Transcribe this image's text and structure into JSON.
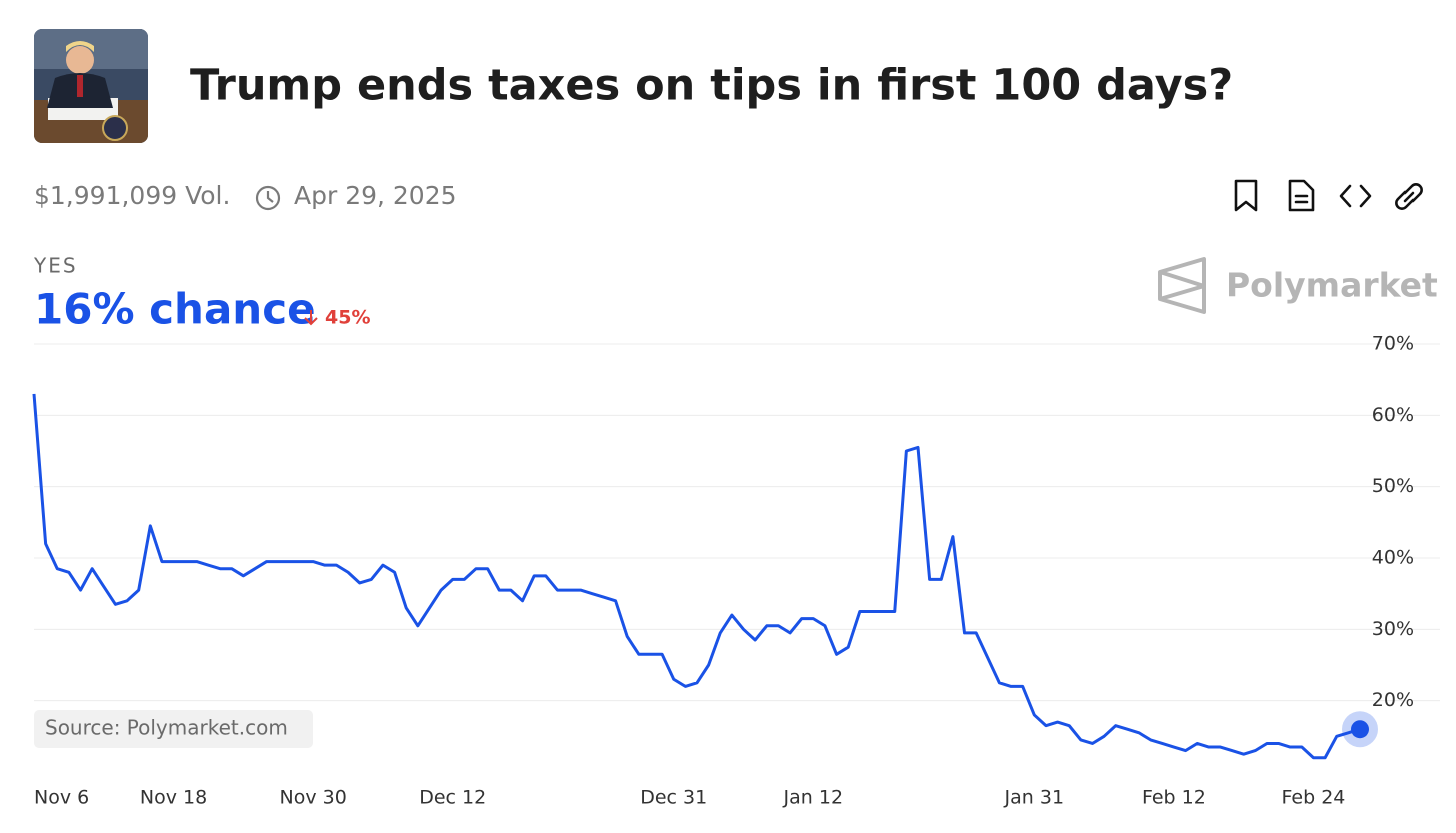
{
  "header": {
    "title": "Trump ends taxes on tips in first 100 days?",
    "volume": "$1,991,099 Vol.",
    "end_date": "Apr 29, 2025"
  },
  "outcome": "YES",
  "chance": "16% chance",
  "change": "45%",
  "watermark": "Polymarket",
  "source": "Source: Polymarket.com",
  "chart_data": {
    "type": "line",
    "x": [
      "Nov 6",
      "Nov 7",
      "Nov 8",
      "Nov 9",
      "Nov 10",
      "Nov 11",
      "Nov 12",
      "Nov 13",
      "Nov 14",
      "Nov 15",
      "Nov 16",
      "Nov 17",
      "Nov 18",
      "Nov 19",
      "Nov 20",
      "Nov 21",
      "Nov 22",
      "Nov 23",
      "Nov 24",
      "Nov 25",
      "Nov 26",
      "Nov 27",
      "Nov 28",
      "Nov 29",
      "Nov 30",
      "Dec 1",
      "Dec 2",
      "Dec 3",
      "Dec 4",
      "Dec 5",
      "Dec 6",
      "Dec 7",
      "Dec 8",
      "Dec 9",
      "Dec 10",
      "Dec 11",
      "Dec 12",
      "Dec 13",
      "Dec 14",
      "Dec 15",
      "Dec 16",
      "Dec 17",
      "Dec 18",
      "Dec 19",
      "Dec 20",
      "Dec 21",
      "Dec 22",
      "Dec 23",
      "Dec 24",
      "Dec 25",
      "Dec 26",
      "Dec 27",
      "Dec 28",
      "Dec 29",
      "Dec 30",
      "Dec 31",
      "Jan 1",
      "Jan 2",
      "Jan 3",
      "Jan 4",
      "Jan 5",
      "Jan 6",
      "Jan 7",
      "Jan 8",
      "Jan 9",
      "Jan 10",
      "Jan 11",
      "Jan 12",
      "Jan 13",
      "Jan 14",
      "Jan 15",
      "Jan 16",
      "Jan 17",
      "Jan 18",
      "Jan 19",
      "Jan 20",
      "Jan 21",
      "Jan 22",
      "Jan 23",
      "Jan 24",
      "Jan 25",
      "Jan 26",
      "Jan 27",
      "Jan 28",
      "Jan 29",
      "Jan 30",
      "Jan 31",
      "Feb 1",
      "Feb 2",
      "Feb 3",
      "Feb 4",
      "Feb 5",
      "Feb 6",
      "Feb 7",
      "Feb 8",
      "Feb 9",
      "Feb 10",
      "Feb 11",
      "Feb 12",
      "Feb 13",
      "Feb 14",
      "Feb 15",
      "Feb 16",
      "Feb 17",
      "Feb 18",
      "Feb 19",
      "Feb 20",
      "Feb 21",
      "Feb 22",
      "Feb 23",
      "Feb 24",
      "Feb 25",
      "Feb 26",
      "Feb 27",
      "Feb 28"
    ],
    "series": [
      {
        "name": "YES",
        "color": "#1a52e6",
        "values": [
          63,
          42,
          38.5,
          38,
          35.5,
          38.5,
          36,
          33.5,
          34,
          35.5,
          44.5,
          39.5,
          39.5,
          39.5,
          39.5,
          39,
          38.5,
          38.5,
          37.5,
          38.5,
          39.5,
          39.5,
          39.5,
          39.5,
          39.5,
          39,
          39,
          38,
          36.5,
          37,
          39,
          38,
          33,
          30.5,
          33,
          35.5,
          37,
          37,
          38.5,
          38.5,
          35.5,
          35.5,
          34,
          37.5,
          37.5,
          35.5,
          35.5,
          35.5,
          35,
          34.5,
          34,
          29,
          26.5,
          26.5,
          26.5,
          23,
          22,
          22.5,
          25,
          29.5,
          32,
          30,
          28.5,
          30.5,
          30.5,
          29.5,
          31.5,
          31.5,
          30.5,
          26.5,
          27.5,
          32.5,
          32.5,
          32.5,
          32.5,
          55,
          55.5,
          37,
          37,
          43,
          29.5,
          29.5,
          26,
          22.5,
          22,
          22,
          18,
          16.5,
          17,
          16.5,
          14.5,
          14,
          15,
          16.5,
          16,
          15.5,
          14.5,
          14,
          13.5,
          13,
          14,
          13.5,
          13.5,
          13,
          12.5,
          13,
          14,
          14,
          13.5,
          13.5,
          12,
          12,
          15,
          15.5,
          16
        ]
      }
    ],
    "xticks": [
      "Nov 6",
      "Nov 18",
      "Nov 30",
      "Dec 12",
      "Dec 31",
      "Jan 12",
      "Jan 31",
      "Feb 12",
      "Feb 24"
    ],
    "ylim": [
      10,
      70
    ],
    "yticks": [
      {
        "value": 20,
        "label": "20%"
      },
      {
        "value": 30,
        "label": "30%"
      },
      {
        "value": 40,
        "label": "40%"
      },
      {
        "value": 50,
        "label": "50%"
      },
      {
        "value": 60,
        "label": "60%"
      },
      {
        "value": 70,
        "label": "70%"
      }
    ],
    "grid": true
  }
}
